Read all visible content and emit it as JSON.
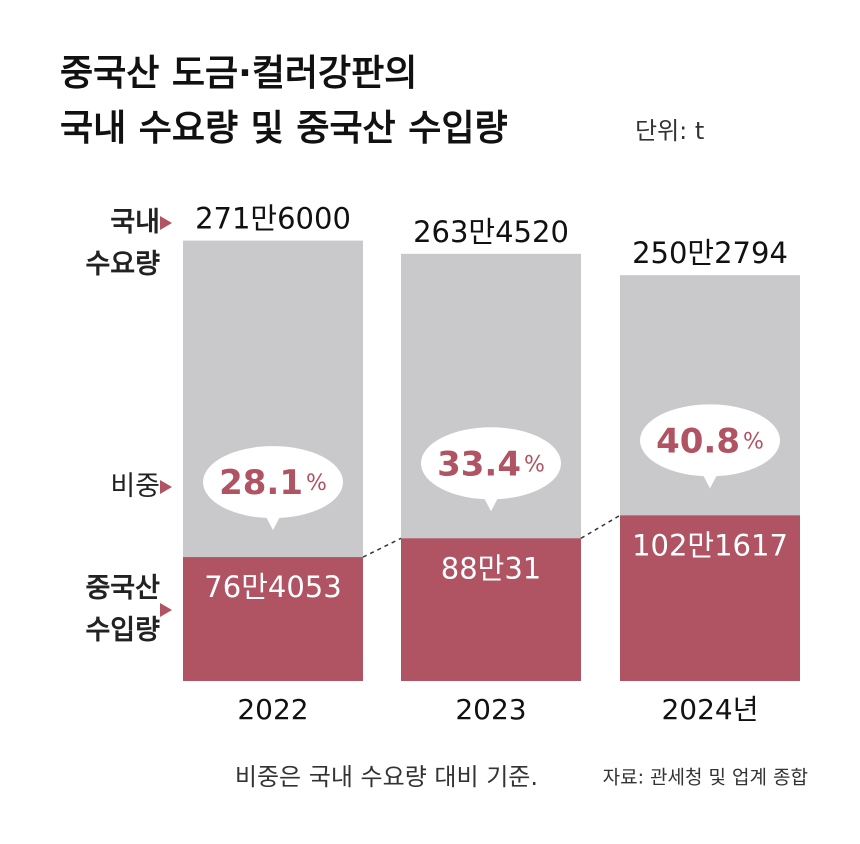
{
  "chart_data": {
    "type": "bar",
    "title": [
      "중국산 도금·컬러강판의",
      "국내 수요량 및 중국산 수입량"
    ],
    "unit_note": "단위: t",
    "categories": [
      "2022",
      "2023",
      "2024년"
    ],
    "series": [
      {
        "name": "국내\n수요량",
        "color": "#c9c9cb",
        "values": [
          2716000,
          2634520,
          2502794
        ],
        "value_labels": [
          "271만6000",
          "263만4520",
          "250만2794"
        ]
      },
      {
        "name": "중국산\n수입량",
        "color": "#b05363",
        "values": [
          764053,
          880031,
          1021617
        ],
        "value_labels": [
          "76만4053",
          "88만31",
          "102만1617"
        ]
      }
    ],
    "share": {
      "name": "비중",
      "values": [
        28.1,
        33.4,
        40.8
      ],
      "unit": "%",
      "color": "#b05363"
    },
    "ylim": [
      0,
      2800000
    ],
    "note": "비중은 국내 수요량 대비 기준.",
    "source": "자료: 관세청 및 업계 종합"
  }
}
